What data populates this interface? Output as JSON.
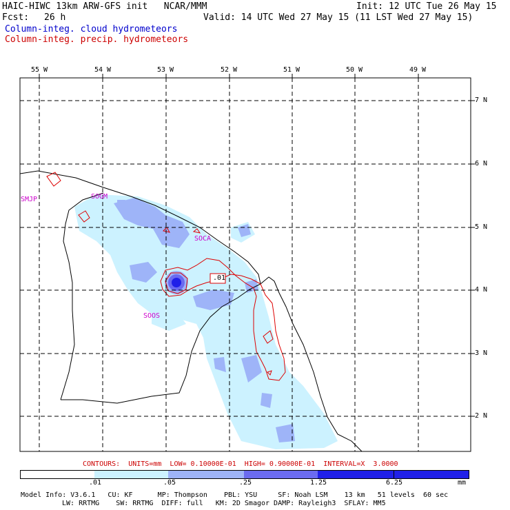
{
  "header": {
    "model_line": "HAIC-HIWC 13km ARW-GFS init   NCAR/MMM",
    "init_line": "Init: 12 UTC Tue 26 May 15",
    "fcst_label": "Fcst:",
    "fcst_value": "26 h",
    "valid_line": "Valid: 14 UTC Wed 27 May 15 (11 LST Wed 27 May 15)",
    "field1": "Column-integ. cloud hydrometeors",
    "field2": "Column-integ. precip. hydrometeors",
    "field1_color": "#0000cc",
    "field2_color": "#cc0000"
  },
  "map": {
    "lon_labels": [
      "55 W",
      "54 W",
      "53 W",
      "52 W",
      "51 W",
      "50 W",
      "49 W"
    ],
    "lat_labels": [
      "7 N",
      "6 N",
      "5 N",
      "4 N",
      "3 N",
      "2 N"
    ],
    "stations": [
      "SMJP",
      "SOGM",
      "SOCA",
      "SOOS"
    ],
    "contour_label": ".01"
  },
  "contour_info": "CONTOURS:  UNITS=mm  LOW= 0.10000E-01  HIGH= 0.90000E-01  INTERVAL=X  3.0000",
  "colorbar": {
    "colors": [
      "#ffffff",
      "#ccf2ff",
      "#9eb4f8",
      "#6b6bf0",
      "#2020e8"
    ],
    "labels": [
      ".01",
      ".05",
      ".25",
      "1.25",
      "6.25"
    ],
    "units": "mm"
  },
  "footer": {
    "line1": "Model Info: V3.6.1   CU: KF      MP: Thompson    PBL: YSU     SF: Noah LSM    13 km   51 levels  60 sec",
    "line2": "LW: RRTMG    SW: RRTMG  DIFF: full   KM: 2D Smagor DAMP: Rayleigh3  SFLAY: MM5"
  }
}
